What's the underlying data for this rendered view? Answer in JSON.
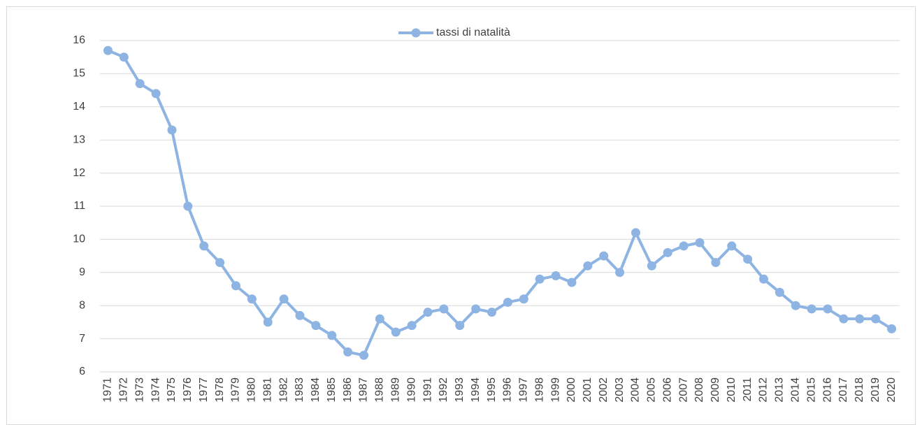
{
  "chart_data": {
    "type": "line",
    "categories": [
      "1971",
      "1972",
      "1973",
      "1974",
      "1975",
      "1976",
      "1977",
      "1978",
      "1979",
      "1980",
      "1981",
      "1982",
      "1983",
      "1984",
      "1985",
      "1986",
      "1987",
      "1988",
      "1989",
      "1990",
      "1991",
      "1992",
      "1993",
      "1994",
      "1995",
      "1996",
      "1997",
      "1998",
      "1999",
      "2000",
      "2001",
      "2002",
      "2003",
      "2004",
      "2005",
      "2006",
      "2007",
      "2008",
      "2009",
      "2010",
      "2011",
      "2012",
      "2013",
      "2014",
      "2015",
      "2016",
      "2017",
      "2018",
      "2019",
      "2020"
    ],
    "series": [
      {
        "name": "tassi di natalità",
        "color": "#8eb4e3",
        "values": [
          15.7,
          15.5,
          14.7,
          14.4,
          13.3,
          11.0,
          9.8,
          9.3,
          8.6,
          8.2,
          7.5,
          8.2,
          7.7,
          7.4,
          7.1,
          6.6,
          6.5,
          7.6,
          7.2,
          7.4,
          7.8,
          7.9,
          7.4,
          7.9,
          7.8,
          8.1,
          8.2,
          8.8,
          8.9,
          8.7,
          9.2,
          9.5,
          9.0,
          10.2,
          9.2,
          9.6,
          9.8,
          9.9,
          9.3,
          9.8,
          9.4,
          8.8,
          8.4,
          8.0,
          7.9,
          7.9,
          7.6,
          7.6,
          7.6,
          7.3
        ]
      }
    ],
    "ylim": [
      6,
      16
    ],
    "yticks": [
      6,
      7,
      8,
      9,
      10,
      11,
      12,
      13,
      14,
      15,
      16
    ],
    "grid": true,
    "legend": "top"
  }
}
